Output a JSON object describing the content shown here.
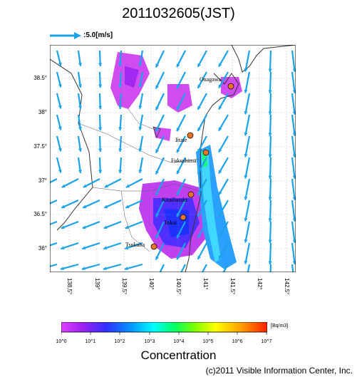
{
  "title": "2011032605(JST)",
  "reference_arrow": {
    "label": ":5.0[m/s]",
    "color": "#1aa3e8"
  },
  "map": {
    "lat_labels": [
      "38.5°",
      "38°",
      "37.5°",
      "37°",
      "36.5°",
      "36°"
    ],
    "lon_labels": [
      "138.5°",
      "139°",
      "139.5°",
      "140°",
      "140.5°",
      "141°",
      "141.5°",
      "142°",
      "142.5°"
    ],
    "places": [
      "Onagawa",
      "Iitate",
      "Fukushima",
      "Kitaibaraki",
      "Tokai",
      "Tsukuba"
    ],
    "place_marker_color": "#e8742a",
    "wind_arrow_color": "#1aa3e8"
  },
  "colorbar": {
    "title": "Concentration",
    "unit": "[Bq/m3]",
    "ticks": [
      "10^0",
      "10^1",
      "10^2",
      "10^3",
      "10^4",
      "10^5",
      "10^6",
      "10^7"
    ],
    "colors": [
      "#e040ff",
      "#a020f0",
      "#3030ff",
      "#00a0ff",
      "#00ffff",
      "#00ff60",
      "#80ff00",
      "#ffff00",
      "#ffa000",
      "#ff2000"
    ]
  },
  "copyright": "(c)2011 Visible Information Center, Inc."
}
